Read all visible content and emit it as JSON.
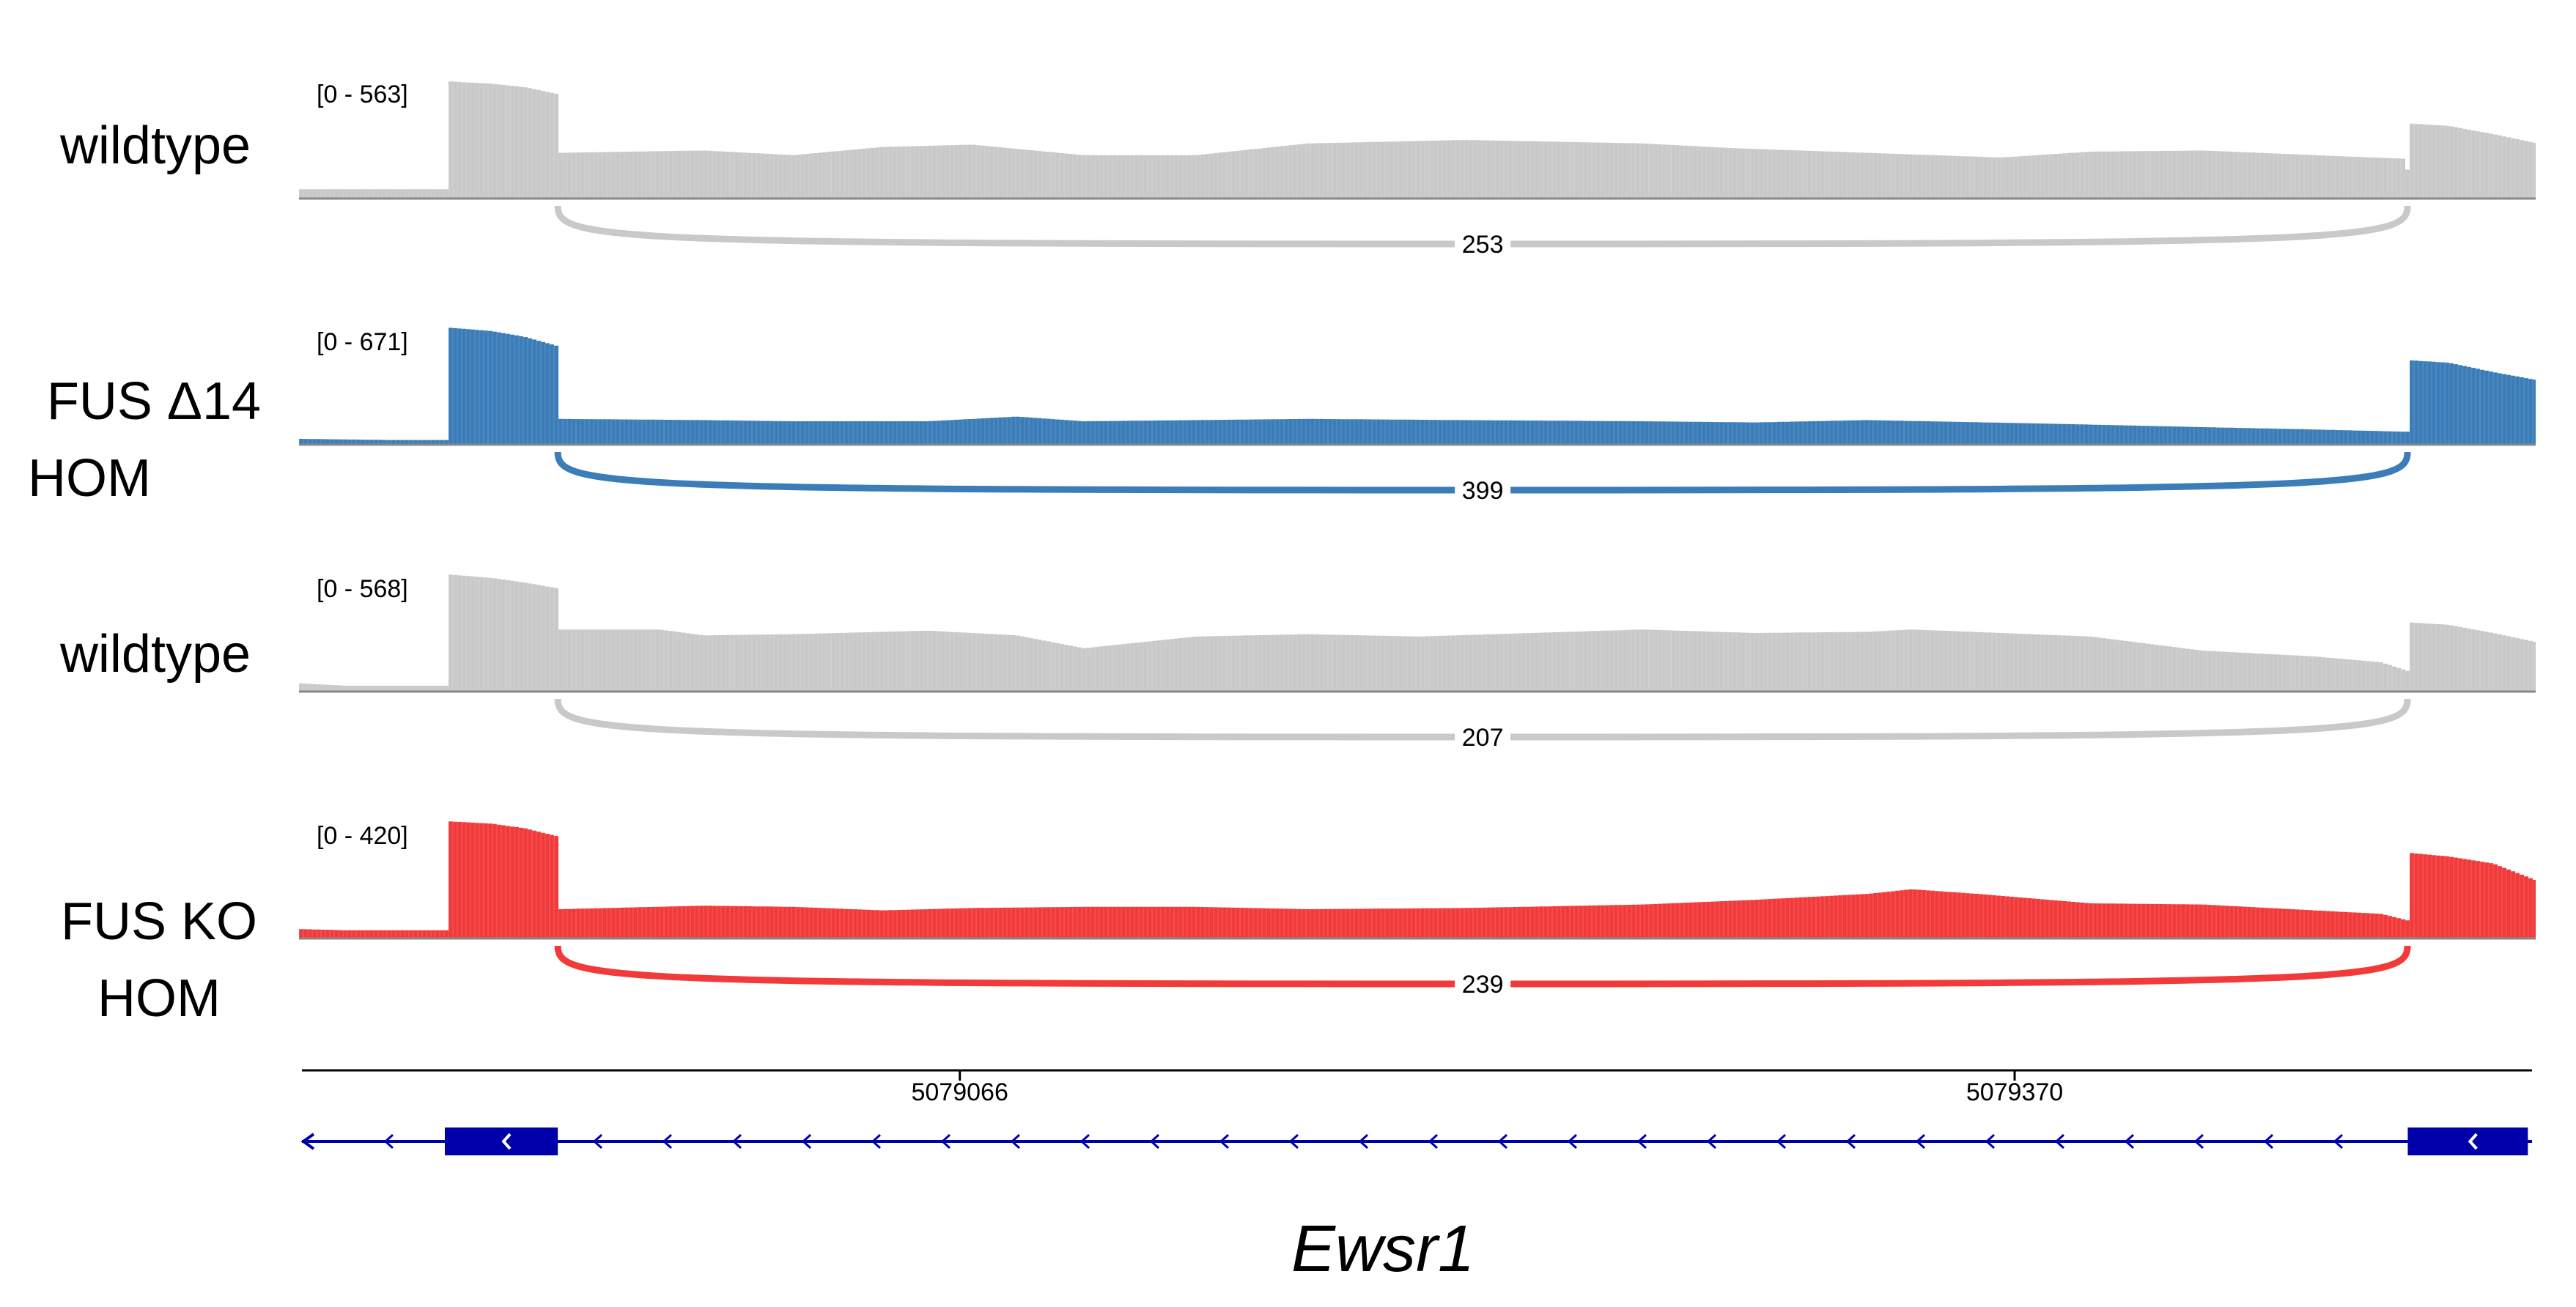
{
  "tracks": [
    {
      "label": [
        "wildtype"
      ],
      "range": "[0 - 563]",
      "max": 563,
      "color": "#c9c9c9",
      "junction": "253",
      "junction_color": "#c9c9c9",
      "profile": [
        [
          0,
          8
        ],
        [
          0.045,
          8
        ],
        [
          0.0651,
          8
        ],
        [
          0.0652,
          100
        ],
        [
          0.085,
          98
        ],
        [
          0.1,
          95
        ],
        [
          0.115,
          89
        ],
        [
          0.1157,
          39
        ],
        [
          0.18,
          41
        ],
        [
          0.22,
          37
        ],
        [
          0.26,
          44
        ],
        [
          0.3,
          46
        ],
        [
          0.35,
          37
        ],
        [
          0.4,
          37
        ],
        [
          0.45,
          47
        ],
        [
          0.52,
          50
        ],
        [
          0.6,
          47
        ],
        [
          0.64,
          43
        ],
        [
          0.7,
          39
        ],
        [
          0.76,
          35
        ],
        [
          0.8,
          40
        ],
        [
          0.85,
          41
        ],
        [
          0.9,
          37
        ],
        [
          0.94,
          34
        ],
        [
          0.9427,
          19
        ],
        [
          0.9428,
          64
        ],
        [
          0.96,
          62
        ],
        [
          0.98,
          55
        ],
        [
          1.0,
          47
        ]
      ]
    },
    {
      "label": [
        "FUS Δ14",
        "HOM"
      ],
      "range": "[0 - 671]",
      "max": 671,
      "color": "#3a7db8",
      "junction": "399",
      "junction_color": "#3a7db8",
      "profile": [
        [
          0,
          5
        ],
        [
          0.04,
          4
        ],
        [
          0.0651,
          4
        ],
        [
          0.0652,
          100
        ],
        [
          0.085,
          97
        ],
        [
          0.1,
          92
        ],
        [
          0.115,
          84
        ],
        [
          0.1157,
          22
        ],
        [
          0.18,
          21
        ],
        [
          0.22,
          20
        ],
        [
          0.28,
          20
        ],
        [
          0.32,
          24
        ],
        [
          0.35,
          20
        ],
        [
          0.4,
          21
        ],
        [
          0.45,
          22
        ],
        [
          0.52,
          21
        ],
        [
          0.6,
          20
        ],
        [
          0.65,
          19
        ],
        [
          0.7,
          21
        ],
        [
          0.78,
          18
        ],
        [
          0.85,
          15
        ],
        [
          0.9,
          13
        ],
        [
          0.9427,
          11
        ],
        [
          0.9428,
          72
        ],
        [
          0.96,
          70
        ],
        [
          0.98,
          62
        ],
        [
          1.0,
          55
        ]
      ]
    },
    {
      "label": [
        "wildtype"
      ],
      "range": "[0 - 568]",
      "max": 568,
      "color": "#c9c9c9",
      "junction": "207",
      "junction_color": "#c9c9c9",
      "profile": [
        [
          0,
          7
        ],
        [
          0.02,
          5
        ],
        [
          0.0651,
          5
        ],
        [
          0.0652,
          100
        ],
        [
          0.085,
          97
        ],
        [
          0.1,
          93
        ],
        [
          0.115,
          88
        ],
        [
          0.1157,
          53
        ],
        [
          0.16,
          53
        ],
        [
          0.18,
          48
        ],
        [
          0.22,
          49
        ],
        [
          0.28,
          52
        ],
        [
          0.32,
          48
        ],
        [
          0.35,
          37
        ],
        [
          0.4,
          47
        ],
        [
          0.45,
          49
        ],
        [
          0.5,
          47
        ],
        [
          0.55,
          50
        ],
        [
          0.6,
          53
        ],
        [
          0.65,
          50
        ],
        [
          0.7,
          51
        ],
        [
          0.72,
          53
        ],
        [
          0.76,
          50
        ],
        [
          0.8,
          47
        ],
        [
          0.85,
          35
        ],
        [
          0.9,
          30
        ],
        [
          0.93,
          25
        ],
        [
          0.9427,
          17
        ],
        [
          0.9428,
          59
        ],
        [
          0.96,
          57
        ],
        [
          0.98,
          50
        ],
        [
          1.0,
          42
        ]
      ]
    },
    {
      "label": [
        "FUS KO",
        "HOM"
      ],
      "range": "[0 - 420]",
      "max": 420,
      "color": "#f23a3a",
      "junction": "239",
      "junction_color": "#f23a3a",
      "profile": [
        [
          0,
          8
        ],
        [
          0.02,
          7
        ],
        [
          0.0651,
          7
        ],
        [
          0.0652,
          100
        ],
        [
          0.085,
          98
        ],
        [
          0.1,
          94
        ],
        [
          0.115,
          87
        ],
        [
          0.1157,
          25
        ],
        [
          0.18,
          28
        ],
        [
          0.22,
          27
        ],
        [
          0.26,
          24
        ],
        [
          0.3,
          26
        ],
        [
          0.35,
          27
        ],
        [
          0.4,
          27
        ],
        [
          0.45,
          25
        ],
        [
          0.52,
          26
        ],
        [
          0.6,
          29
        ],
        [
          0.65,
          33
        ],
        [
          0.7,
          38
        ],
        [
          0.72,
          42
        ],
        [
          0.75,
          38
        ],
        [
          0.8,
          30
        ],
        [
          0.85,
          29
        ],
        [
          0.9,
          24
        ],
        [
          0.93,
          21
        ],
        [
          0.9427,
          15
        ],
        [
          0.9428,
          73
        ],
        [
          0.96,
          70
        ],
        [
          0.98,
          64
        ],
        [
          1.0,
          49
        ]
      ]
    }
  ],
  "ruler": {
    "ticks": [
      "5079066",
      "5079370"
    ],
    "tick_fractions": [
      0.295,
      0.768
    ]
  },
  "gene": {
    "name": "Ewsr1",
    "color": "#0000aa",
    "strand": "minus",
    "exons": [
      [
        0.0652,
        0.1157
      ],
      [
        0.9428,
        0.9965
      ]
    ]
  }
}
